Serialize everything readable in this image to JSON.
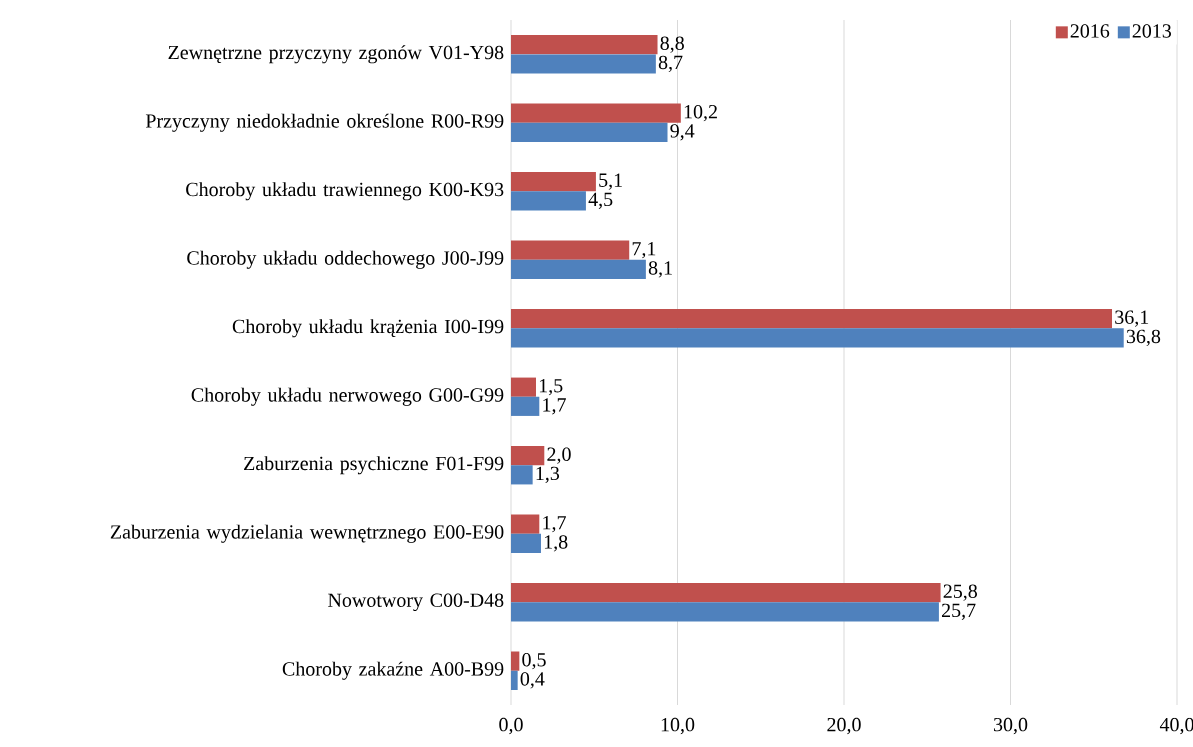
{
  "chart_data": {
    "type": "bar",
    "orientation": "horizontal",
    "categories": [
      "Zewnętrzne przyczyny zgonów V01-Y98",
      "Przyczyny niedokładnie określone R00-R99",
      "Choroby układu trawiennego K00-K93",
      "Choroby układu oddechowego J00-J99",
      "Choroby układu krążenia I00-I99",
      "Choroby układu nerwowego G00-G99",
      "Zaburzenia psychiczne F01-F99",
      "Zaburzenia wydzielania wewnętrznego E00-E90",
      "Nowotwory C00-D48",
      "Choroby zakaźne A00-B99"
    ],
    "series": [
      {
        "name": "2016",
        "color": "#c0504d",
        "values": [
          8.8,
          10.2,
          5.1,
          7.1,
          36.1,
          1.5,
          2.0,
          1.7,
          25.8,
          0.5
        ],
        "value_labels": [
          "8,8",
          "10,2",
          "5,1",
          "7,1",
          "36,1",
          "1,5",
          "2,0",
          "1,7",
          "25,8",
          "0,5"
        ]
      },
      {
        "name": "2013",
        "color": "#4f81bd",
        "values": [
          8.7,
          9.4,
          4.5,
          8.1,
          36.8,
          1.7,
          1.3,
          1.8,
          25.7,
          0.4
        ],
        "value_labels": [
          "8,7",
          "9,4",
          "4,5",
          "8,1",
          "36,8",
          "1,7",
          "1,3",
          "1,8",
          "25,7",
          "0,4"
        ]
      }
    ],
    "xlim": [
      0,
      40
    ],
    "xticks": [
      {
        "value": 0,
        "label": "0,0"
      },
      {
        "value": 10,
        "label": "10,0"
      },
      {
        "value": 20,
        "label": "20,0"
      },
      {
        "value": 30,
        "label": "30,0"
      },
      {
        "value": 40,
        "label": "40,0"
      }
    ],
    "grid": "x",
    "legend": "top right"
  }
}
